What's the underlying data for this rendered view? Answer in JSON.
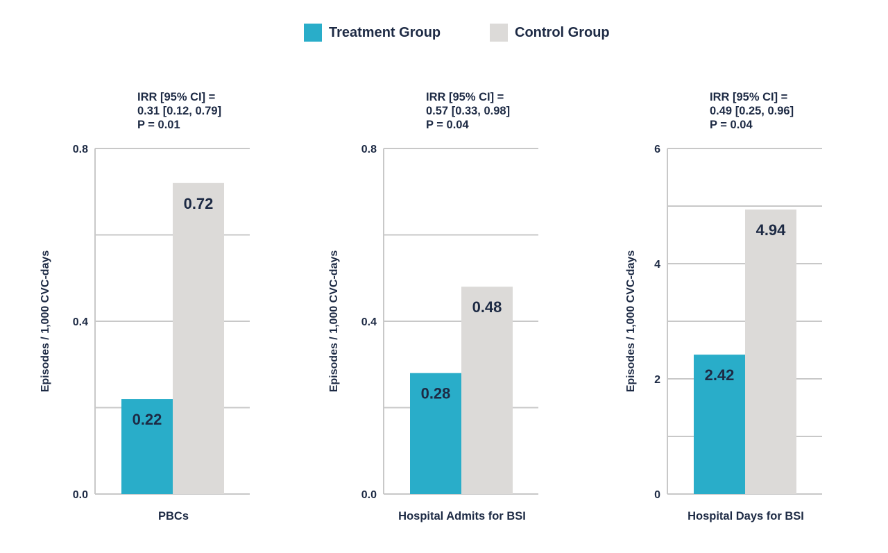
{
  "legend": [
    {
      "label": "Treatment Group",
      "color": "#29adc9"
    },
    {
      "label": "Control Group",
      "color": "#dcdad8"
    }
  ],
  "chart_data": [
    {
      "type": "bar",
      "categories": [
        "PBCs"
      ],
      "series": [
        {
          "name": "Treatment Group",
          "values": [
            0.22
          ]
        },
        {
          "name": "Control Group",
          "values": [
            0.72
          ]
        }
      ],
      "value_labels": [
        "0.22",
        "0.72"
      ],
      "ylabel": "Episodes / 1,000 CVC-days",
      "xlabel": "PBCs",
      "ylim": [
        0,
        0.8
      ],
      "ticks": [
        0.0,
        0.4,
        0.8
      ],
      "tick_labels": [
        "0.0",
        "0.4",
        "0.8"
      ],
      "gridlines": [
        0,
        0.2,
        0.4,
        0.6,
        0.8
      ],
      "annotation": [
        "IRR [95% CI] =",
        "0.31 [0.12, 0.79]",
        "P = 0.01"
      ]
    },
    {
      "type": "bar",
      "categories": [
        "Hospital Admits for BSI"
      ],
      "series": [
        {
          "name": "Treatment Group",
          "values": [
            0.28
          ]
        },
        {
          "name": "Control Group",
          "values": [
            0.48
          ]
        }
      ],
      "value_labels": [
        "0.28",
        "0.48"
      ],
      "ylabel": "Episodes / 1,000 CVC-days",
      "xlabel": "Hospital Admits for BSI",
      "ylim": [
        0,
        0.8
      ],
      "ticks": [
        0.0,
        0.4,
        0.8
      ],
      "tick_labels": [
        "0.0",
        "0.4",
        "0.8"
      ],
      "gridlines": [
        0,
        0.2,
        0.4,
        0.6,
        0.8
      ],
      "annotation": [
        "IRR [95% CI] =",
        "0.57 [0.33, 0.98]",
        "P = 0.04"
      ]
    },
    {
      "type": "bar",
      "categories": [
        "Hospital Days for BSI"
      ],
      "series": [
        {
          "name": "Treatment Group",
          "values": [
            2.42
          ]
        },
        {
          "name": "Control Group",
          "values": [
            4.94
          ]
        }
      ],
      "value_labels": [
        "2.42",
        "4.94"
      ],
      "ylabel": "Episodes / 1,000 CVC-days",
      "xlabel": "Hospital Days for BSI",
      "ylim": [
        0,
        6
      ],
      "ticks": [
        0,
        2,
        4,
        6
      ],
      "tick_labels": [
        "0",
        "2",
        "4",
        "6"
      ],
      "gridlines": [
        0,
        1,
        2,
        3,
        4,
        5,
        6
      ],
      "annotation": [
        "IRR [95% CI] =",
        "0.49 [0.25, 0.96]",
        "P = 0.04"
      ]
    }
  ]
}
